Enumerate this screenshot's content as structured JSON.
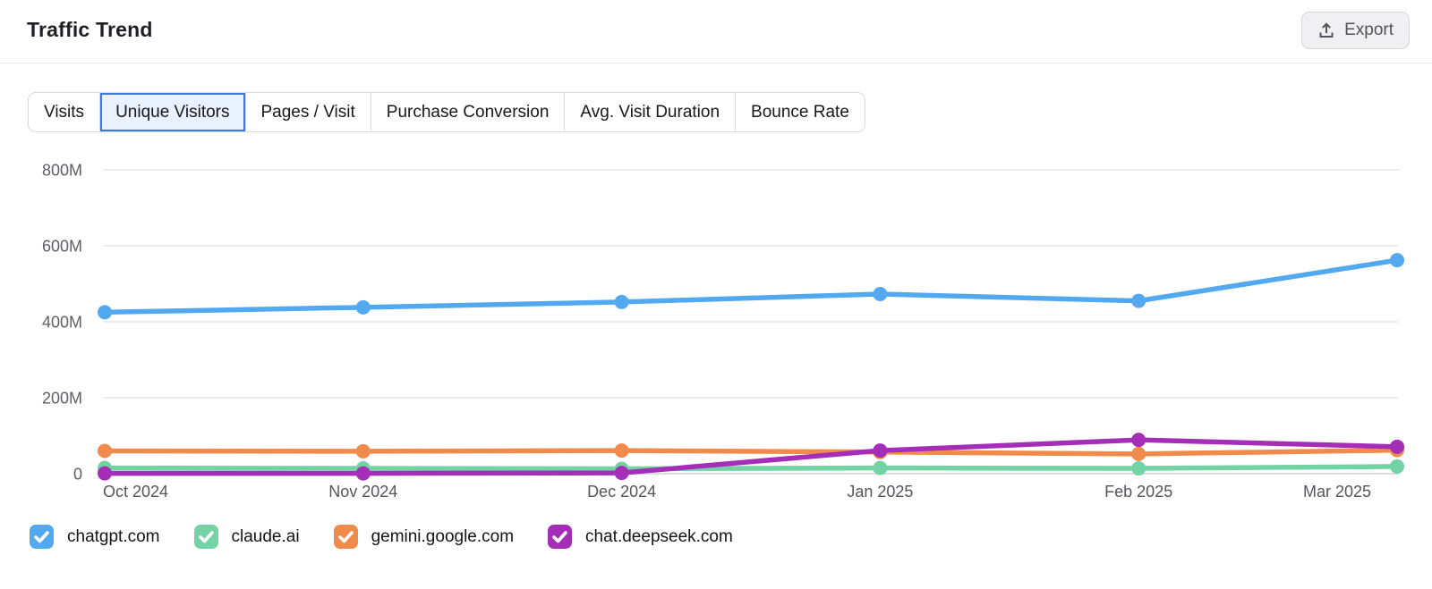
{
  "header": {
    "title": "Traffic Trend",
    "export_label": "Export"
  },
  "tabs": [
    {
      "label": "Visits",
      "selected": false
    },
    {
      "label": "Unique Visitors",
      "selected": true
    },
    {
      "label": "Pages / Visit",
      "selected": false
    },
    {
      "label": "Purchase Conversion",
      "selected": false
    },
    {
      "label": "Avg. Visit Duration",
      "selected": false
    },
    {
      "label": "Bounce Rate",
      "selected": false
    }
  ],
  "chart_data": {
    "type": "line",
    "title": "Traffic Trend — Unique Visitors",
    "x": [
      "Oct 2024",
      "Nov 2024",
      "Dec 2024",
      "Jan 2025",
      "Feb 2025",
      "Mar 2025"
    ],
    "y_unit": "M",
    "ylim": [
      0,
      800
    ],
    "yticks": [
      0,
      200,
      400,
      600,
      800
    ],
    "ytick_labels": [
      "0",
      "200M",
      "400M",
      "600M",
      "800M"
    ],
    "grid": true,
    "legend_position": "bottom",
    "series": [
      {
        "name": "chatgpt.com",
        "color": "#52a9f0",
        "checked": true,
        "values": [
          425,
          438,
          452,
          473,
          455,
          562
        ]
      },
      {
        "name": "claude.ai",
        "color": "#74d3a5",
        "checked": true,
        "values": [
          15,
          14,
          13,
          15,
          14,
          19
        ]
      },
      {
        "name": "gemini.google.com",
        "color": "#f18b4c",
        "checked": true,
        "values": [
          60,
          59,
          61,
          57,
          52,
          62
        ]
      },
      {
        "name": "chat.deepseek.com",
        "color": "#a42eb8",
        "checked": true,
        "values": [
          1,
          1,
          2,
          61,
          89,
          71
        ]
      }
    ]
  }
}
